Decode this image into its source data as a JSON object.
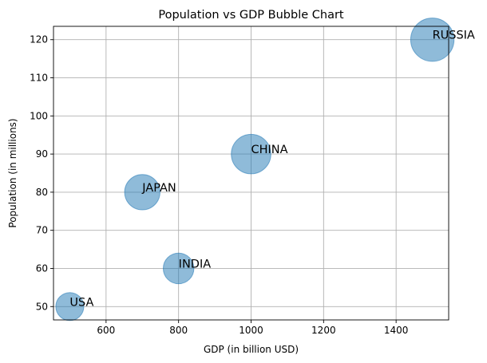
{
  "chart_data": {
    "type": "scatter",
    "title": "Population vs GDP Bubble Chart",
    "xlabel": "GDP (in billion USD)",
    "ylabel": "Population (in millions)",
    "xlim": [
      455,
      1545
    ],
    "ylim": [
      46.5,
      123.5
    ],
    "xticks": [
      600,
      800,
      1000,
      1200,
      1400
    ],
    "yticks": [
      50,
      60,
      70,
      80,
      90,
      100,
      110,
      120
    ],
    "grid": true,
    "bubble_color": "#1f77b4",
    "bubble_alpha": 0.5,
    "points": [
      {
        "label": "USA",
        "x": 500,
        "y": 50,
        "size": 500
      },
      {
        "label": "INDIA",
        "x": 800,
        "y": 60,
        "size": 600
      },
      {
        "label": "JAPAN",
        "x": 700,
        "y": 80,
        "size": 800
      },
      {
        "label": "CHINA",
        "x": 1000,
        "y": 90,
        "size": 1000
      },
      {
        "label": "RUSSIA",
        "x": 1500,
        "y": 120,
        "size": 1200
      }
    ]
  }
}
